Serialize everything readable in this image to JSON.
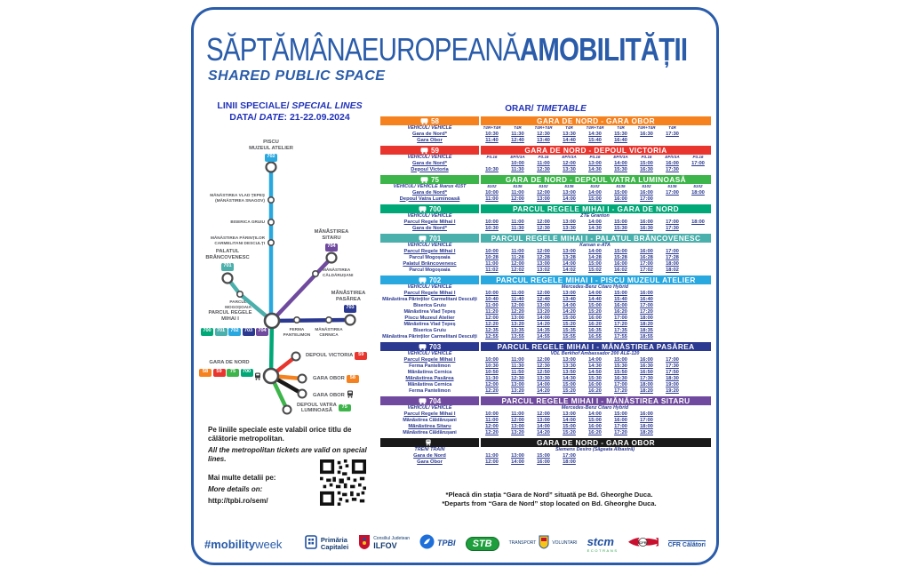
{
  "header": {
    "title_regular": "SĂPTĂMÂNAEUROPEANĂ",
    "title_bold": "AMOBILITĂȚII",
    "subtitle": "SHARED PUBLIC SPACE"
  },
  "left": {
    "heading_ro": "LINII SPECIALE/ ",
    "heading_en": "SPECIAL LINES",
    "date_label": "DATA/ ",
    "date_label_en": "DATE",
    "date_value": ": 21-22.09.2024",
    "note_ro": "Pe liniile speciale este valabil orice titlu de călătorie metropolitan.",
    "note_en": "All the metropolitan tickets are valid on special lines.",
    "details_ro": "Mai multe detalii pe:",
    "details_en": "More details on:",
    "url": "http://tpbi.ro/sem/"
  },
  "colors": {
    "58": "#F5821F",
    "59": "#E8352E",
    "75": "#3DB54A",
    "700": "#00A878",
    "701": "#4BAFAC",
    "702": "#29A8E0",
    "703": "#2B3990",
    "704": "#6F4A9E",
    "train": "#1A1A1A",
    "accent": "#2A5CAA"
  },
  "badges": {
    "58": "58",
    "59": "59",
    "75": "75",
    "700": "700",
    "701": "701",
    "702": "702",
    "703": "703",
    "704": "704"
  },
  "map": {
    "piscu": [
      "PISCU",
      "MUZEUL ATELIER"
    ],
    "vlad": [
      "MĂNĂSTIREA VLAD ȚEPEȘ",
      "(MĂNĂSTIREA SNAGOV)"
    ],
    "gruiu": [
      "BISERICA GRUIU"
    ],
    "carmel": [
      "MĂNĂSTIREA PĂRINȚILOR",
      "CARMELITANI DESCULȚI"
    ],
    "palatul": [
      "PALATUL",
      "BRÂNCOVENESC"
    ],
    "mogosoaia": [
      "PARCUL",
      "MOGOȘOAIA"
    ],
    "sitaru": [
      "MĂNĂSTIREA",
      "SITARU"
    ],
    "caldarusani": [
      "MĂNĂSTIREA",
      "CĂLDĂRUȘANI"
    ],
    "pasarea": [
      "MĂNĂSTIREA",
      "PASĂREA"
    ],
    "ferma": [
      "FERMA",
      "PANTELIMON"
    ],
    "cernica": [
      "MĂNĂSTIREA",
      "CERNICA"
    ],
    "hub": [
      "PARCUL REGELE",
      "MIHAI I"
    ],
    "victoria": "DEPOUL VICTORIA",
    "garanord": "GARA DE NORD",
    "obor": "GARA OBOR",
    "obor_train": "GARA OBOR",
    "vatra": [
      "DEPOUL VATRA",
      "LUMINOASĂ"
    ],
    "hub_badges": [
      "700",
      "701",
      "702",
      "703",
      "704"
    ],
    "garanord_badges": [
      "58",
      "59",
      "75",
      "700"
    ]
  },
  "timetable": {
    "title_ro": "ORAR/",
    "title_en": " TIMETABLE",
    "footnote_ro": "*Pleacă din stația “Gara de Nord” situată pe Bd. Gheorghe Duca.",
    "footnote_en": "*Departs from “Gara de Nord” stop located on Bd. Gheorghe Duca.",
    "tables": [
      {
        "key": "58",
        "line": "58",
        "icon": "bus",
        "route": "GARA DE NORD - GARA OBOR",
        "vehicle_label": "VEHICUL/ VEHICLE",
        "vehicle_codes": [
          "T4R+T4R",
          "T4R",
          "T4R+T4R",
          "T4R",
          "T4R+T4R",
          "T4R",
          "T4R+T4R",
          "T4R",
          ""
        ],
        "rows": [
          {
            "stop": "Gara de Nord*",
            "major": true,
            "times": [
              "10:30",
              "11:30",
              "12:30",
              "13:30",
              "14:30",
              "15:30",
              "16:30",
              "17:30"
            ]
          },
          {
            "stop": "Gara Obor",
            "major": true,
            "times": [
              "11:40",
              "12:40",
              "13:40",
              "14:40",
              "15:40",
              "16:40"
            ]
          }
        ]
      },
      {
        "key": "59",
        "line": "59",
        "icon": "bus",
        "route": "GARA DE NORD - DEPOUL VICTORIA",
        "vehicle_label": "VEHICUL/ VEHICLE",
        "vehicle_codes": [
          "P3.16",
          "EP/V3A",
          "P3.16",
          "EP/V3A",
          "P3.16",
          "EP/V3A",
          "P3.16",
          "EP/V3A",
          "P3.16"
        ],
        "rows": [
          {
            "stop": "Gara de Nord*",
            "major": true,
            "times": [
              "",
              "10:00",
              "11:00",
              "12:00",
              "13:00",
              "14:00",
              "15:00",
              "16:00",
              "17:00"
            ]
          },
          {
            "stop": "Depoul Victoria",
            "major": true,
            "times": [
              "10:30",
              "11:30",
              "12:30",
              "13:30",
              "14:30",
              "15:30",
              "16:30",
              "17:30"
            ]
          }
        ]
      },
      {
        "key": "75",
        "line": "75",
        "icon": "bus",
        "route": "GARA DE NORD - DEPOUL VATRA LUMINOASĂ",
        "vehicle_label": "VEHICUL/ VEHICLE",
        "vehicle_note": "Ikarus 415T",
        "vehicle_codes": [
          "5102",
          "5135",
          "5102",
          "5135",
          "5102",
          "5135",
          "5102",
          "5135",
          "5102"
        ],
        "rows": [
          {
            "stop": "Gara de Nord*",
            "major": true,
            "times": [
              "10:00",
              "11:00",
              "12:00",
              "13:00",
              "14:00",
              "15:00",
              "16:00",
              "17:00",
              "18:00"
            ]
          },
          {
            "stop": "Depoul Vatra Luminoasă",
            "major": true,
            "times": [
              "11:00",
              "12:00",
              "13:00",
              "14:00",
              "15:00",
              "16:00",
              "17:00"
            ]
          }
        ]
      },
      {
        "key": "700",
        "line": "700",
        "icon": "bus",
        "route": "PARCUL REGELE MIHAI I - GARA DE NORD",
        "vehicle_label": "VEHICUL/ VEHICLE",
        "vehicle_model": "ZTE Granton",
        "rows": [
          {
            "stop": "Parcul Regele Mihai I",
            "major": true,
            "times": [
              "10:00",
              "11:00",
              "12:00",
              "13:00",
              "14:00",
              "15:00",
              "16:00",
              "17:00",
              "18:00"
            ]
          },
          {
            "stop": "Gara de Nord*",
            "major": true,
            "times": [
              "10:30",
              "11:30",
              "12:30",
              "13:30",
              "14:30",
              "15:30",
              "16:30",
              "17:30"
            ]
          }
        ]
      },
      {
        "key": "701",
        "line": "701",
        "icon": "bus",
        "route": "PARCUL REGELE MIHAI I - PALATUL BRÂNCOVENESC",
        "vehicle_label": "VEHICUL/ VEHICLE",
        "vehicle_model": "Karsan e-ATA",
        "rows": [
          {
            "stop": "Parcul Regele Mihai I",
            "major": true,
            "times": [
              "10:00",
              "11:00",
              "12:00",
              "13:00",
              "14:00",
              "15:00",
              "16:00",
              "17:00"
            ]
          },
          {
            "stop": "Parcul Mogoșoaia",
            "major": false,
            "times": [
              "10:28",
              "11:28",
              "12:28",
              "13:28",
              "14:28",
              "15:28",
              "16:28",
              "17:28"
            ]
          },
          {
            "stop": "Palatul Brâncovenesc",
            "major": true,
            "times": [
              "11:00",
              "12:00",
              "13:00",
              "14:00",
              "15:00",
              "16:00",
              "17:00",
              "18:00"
            ]
          },
          {
            "stop": "Parcul Mogoșoaia",
            "major": false,
            "times": [
              "11:02",
              "12:02",
              "13:02",
              "14:02",
              "15:02",
              "16:02",
              "17:02",
              "18:02"
            ]
          }
        ]
      },
      {
        "key": "702",
        "line": "702",
        "icon": "bus",
        "route": "PARCUL REGELE MIHAI I - PISCU MUZEUL ATELIER",
        "vehicle_label": "VEHICUL/ VEHICLE",
        "vehicle_model": "Mercedes-Benz Citaro Hybrid",
        "rows": [
          {
            "stop": "Parcul Regele Mihai I",
            "major": true,
            "times": [
              "10:00",
              "11:00",
              "12:00",
              "13:00",
              "14:00",
              "15:00",
              "16:00"
            ]
          },
          {
            "stop": "Mănăstirea Părinților Carmelitani Desculți",
            "major": false,
            "times": [
              "10:40",
              "11:40",
              "12:40",
              "13:40",
              "14:40",
              "15:40",
              "16:40"
            ]
          },
          {
            "stop": "Biserica Gruiu",
            "major": false,
            "times": [
              "11:00",
              "12:00",
              "13:00",
              "14:00",
              "15:00",
              "16:00",
              "17:00"
            ]
          },
          {
            "stop": "Mănăstirea Vlad Țepeș",
            "major": false,
            "times": [
              "11:20",
              "12:20",
              "13:20",
              "14:20",
              "15:20",
              "16:20",
              "17:20"
            ]
          },
          {
            "stop": "Piscu Muzeul Atelier",
            "major": true,
            "times": [
              "12:00",
              "13:00",
              "14:00",
              "15:00",
              "16:00",
              "17:00",
              "18:00"
            ]
          },
          {
            "stop": "Mănăstirea Vlad Țepeș",
            "major": false,
            "times": [
              "12:20",
              "13:20",
              "14:20",
              "15:20",
              "16:20",
              "17:20",
              "18:20"
            ]
          },
          {
            "stop": "Biserica Gruiu",
            "major": false,
            "times": [
              "12:35",
              "13:35",
              "14:35",
              "15:35",
              "16:35",
              "17:35",
              "18:35"
            ]
          },
          {
            "stop": "Mănăstirea Părinților Carmelitani Desculți",
            "major": false,
            "times": [
              "12:55",
              "13:55",
              "14:55",
              "15:55",
              "16:55",
              "17:55",
              "18:55"
            ]
          }
        ]
      },
      {
        "key": "703",
        "line": "703",
        "icon": "bus",
        "route": "PARCUL REGELE MIHAI I - MĂNĂSTIREA PASĂREA",
        "vehicle_label": "VEHICUL/ VEHICLE",
        "vehicle_model": "VDL Berkhof Ambassador 200 ALE-120",
        "rows": [
          {
            "stop": "Parcul Regele Mihai I",
            "major": true,
            "times": [
              "10:00",
              "11:00",
              "12:00",
              "13:00",
              "14:00",
              "15:00",
              "16:00",
              "17:00"
            ]
          },
          {
            "stop": "Ferma Pantelimon",
            "major": false,
            "times": [
              "10:30",
              "11:30",
              "12:30",
              "13:30",
              "14:30",
              "15:30",
              "16:30",
              "17:30"
            ]
          },
          {
            "stop": "Mănăstirea Cernica",
            "major": false,
            "times": [
              "10:50",
              "11:50",
              "12:50",
              "13:50",
              "14:50",
              "15:50",
              "16:50",
              "17:50"
            ]
          },
          {
            "stop": "Mănăstirea Pasărea",
            "major": true,
            "times": [
              "11:30",
              "12:30",
              "13:30",
              "14:30",
              "15:30",
              "16:30",
              "17:30",
              "18:30"
            ]
          },
          {
            "stop": "Mănăstirea Cernica",
            "major": false,
            "times": [
              "12:00",
              "13:00",
              "14:00",
              "15:00",
              "16:00",
              "17:00",
              "18:00",
              "19:00"
            ]
          },
          {
            "stop": "Ferma Pantelimon",
            "major": false,
            "times": [
              "12:20",
              "13:20",
              "14:20",
              "15:20",
              "16:20",
              "17:20",
              "18:20",
              "19:20"
            ]
          }
        ]
      },
      {
        "key": "704",
        "line": "704",
        "icon": "bus",
        "route": "PARCUL REGELE MIHAI I - MĂNĂSTIREA SITARU",
        "vehicle_label": "VEHICUL/ VEHICLE",
        "vehicle_model": "Mercedes-Benz Citaro Hybrid",
        "rows": [
          {
            "stop": "Parcul Regele Mihai I",
            "major": true,
            "times": [
              "10:00",
              "11:00",
              "12:00",
              "13:00",
              "14:00",
              "15:00",
              "16:00"
            ]
          },
          {
            "stop": "Mănăstirea Căldărușani",
            "major": false,
            "times": [
              "11:00",
              "12:00",
              "13:00",
              "14:00",
              "15:00",
              "16:00",
              "17:00"
            ]
          },
          {
            "stop": "Mănăstirea Sitaru",
            "major": true,
            "times": [
              "12:00",
              "13:00",
              "14:00",
              "15:00",
              "16:00",
              "17:00",
              "18:00"
            ]
          },
          {
            "stop": "Mănăstirea Căldărușani",
            "major": false,
            "times": [
              "12:20",
              "13:20",
              "14:20",
              "15:20",
              "16:20",
              "17:20",
              "18:20"
            ]
          }
        ]
      },
      {
        "key": "train",
        "line": "",
        "icon": "train",
        "route": "GARA DE NORD - GARA OBOR",
        "vehicle_label": "TREN/ TRAIN",
        "vehicle_model": "Siemens Desiro (Săgeata Albastră)",
        "rows": [
          {
            "stop": "Gara de Nord",
            "major": true,
            "times": [
              "11:00",
              "13:00",
              "15:00",
              "17:00"
            ]
          },
          {
            "stop": "Gara Obor",
            "major": true,
            "times": [
              "12:00",
              "14:00",
              "16:00",
              "18:00"
            ]
          }
        ]
      }
    ]
  },
  "footer": {
    "hashtag_bold": "#mobility",
    "hashtag_light": "week",
    "primaria1": "Primăria",
    "primaria2": "Capitalei",
    "ilfov1": "Consiliul Judetean",
    "ilfov2": "ILFOV",
    "tpbi": "TPBI",
    "stb": "STB",
    "voluntari1": "TRANSPORT",
    "voluntari2": "VOLUNTARI",
    "stcm": "stcm",
    "stcm_sub": "ECOTRANS",
    "cfr": "CFR",
    "cfr_calatori": "CFR Călători"
  }
}
